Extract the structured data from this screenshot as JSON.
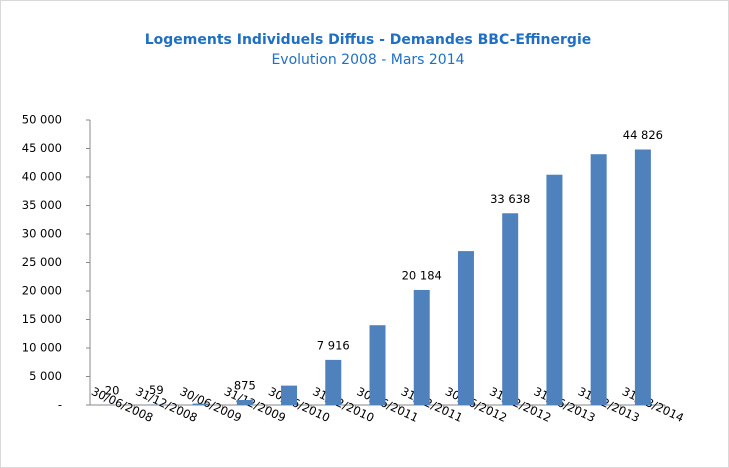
{
  "chart_data": {
    "type": "bar",
    "title": "Logements Individuels Diffus - Demandes BBC-Effinergie",
    "subtitle": "Evolution 2008 - Mars 2014",
    "categories": [
      "30/06/2008",
      "31/12/2008",
      "30/06/2009",
      "31/12/2009",
      "30/06/2010",
      "31/12/2010",
      "30/06/2011",
      "31/12/2011",
      "30/06/2012",
      "31/12/2012",
      "31/06/2013",
      "31/12/2013",
      "31/03/2014"
    ],
    "values": [
      20,
      59,
      250,
      875,
      3400,
      7916,
      14000,
      20184,
      27000,
      33638,
      40400,
      44000,
      44826
    ],
    "value_labels": [
      "20",
      "59",
      null,
      "875",
      null,
      "7 916",
      null,
      "20 184",
      null,
      "33 638",
      null,
      null,
      "44 826"
    ],
    "color": "#4f81bd",
    "ylim": [
      0,
      50000
    ],
    "yticks": [
      {
        "value": 0,
        "label": "-"
      },
      {
        "value": 5000,
        "label": "5 000"
      },
      {
        "value": 10000,
        "label": "10 000"
      },
      {
        "value": 15000,
        "label": "15 000"
      },
      {
        "value": 20000,
        "label": "20 000"
      },
      {
        "value": 25000,
        "label": "25 000"
      },
      {
        "value": 30000,
        "label": "30 000"
      },
      {
        "value": 35000,
        "label": "35 000"
      },
      {
        "value": 40000,
        "label": "40 000"
      },
      {
        "value": 45000,
        "label": "45 000"
      },
      {
        "value": 50000,
        "label": "50 000"
      }
    ],
    "grid": false
  }
}
